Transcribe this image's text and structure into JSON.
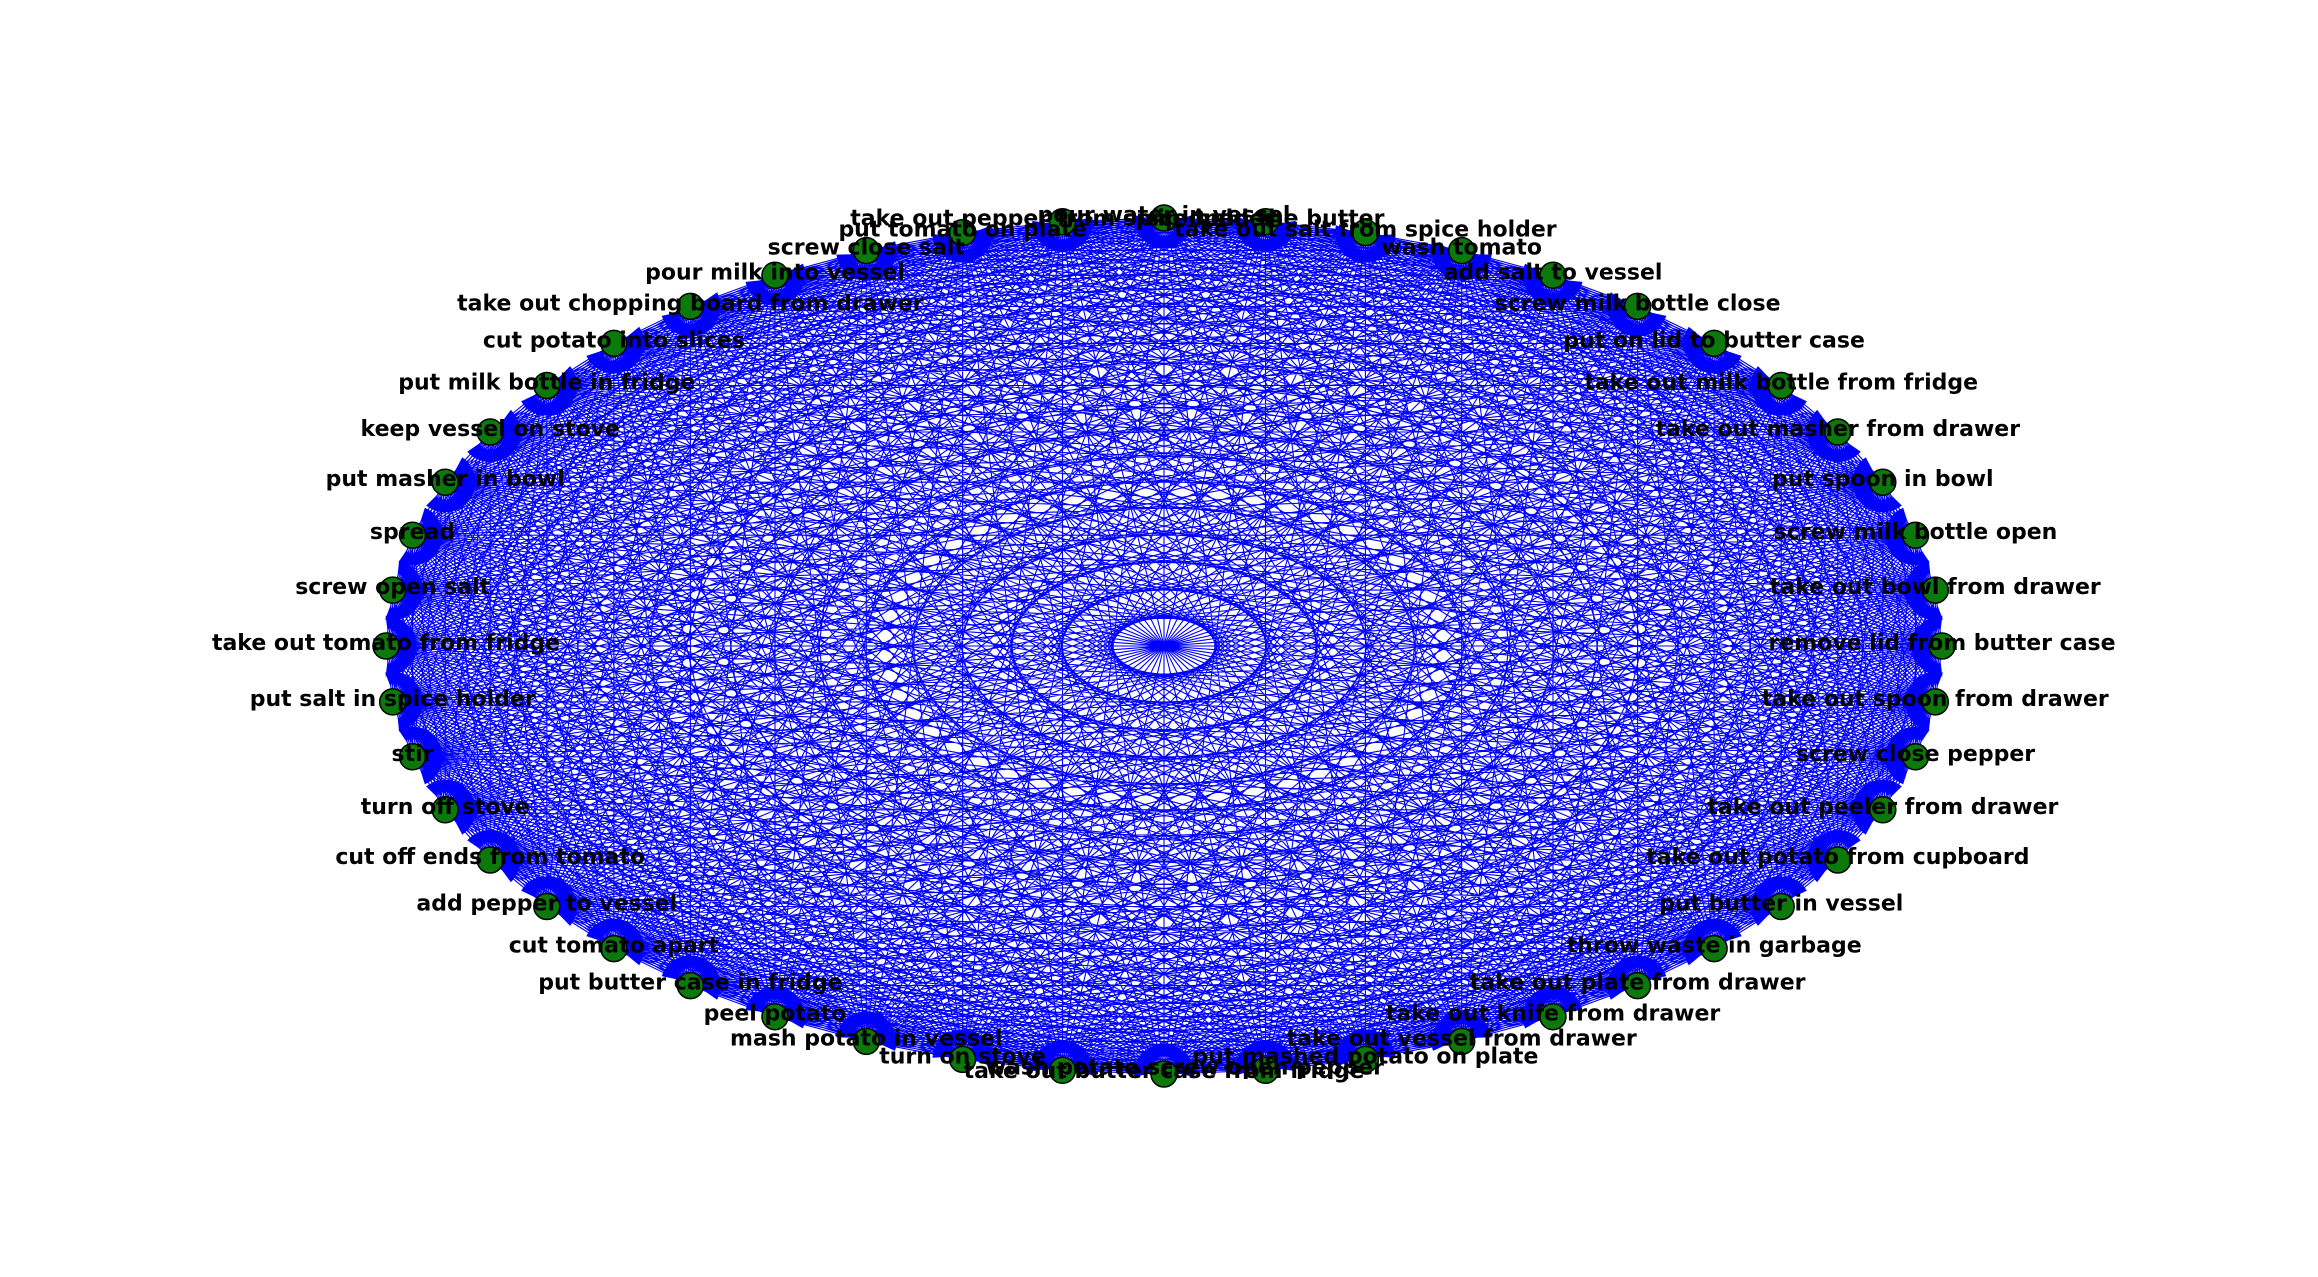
{
  "colors": {
    "background": "#ffffff",
    "edge": "#0000ff",
    "node_fill": "#0b7a0b",
    "node_stroke": "#000000",
    "label": "#000000"
  },
  "graph": {
    "type": "complete-directed-circular",
    "nodes": [
      "remove lid from butter case",
      "take out bowl from drawer",
      "screw milk bottle open",
      "put spoon in bowl",
      "take out masher from drawer",
      "take out milk bottle from fridge",
      "put on lid to butter case",
      "screw milk bottle close",
      "add salt to vessel",
      "wash tomato",
      "take out salt from spice holder",
      "rip open the butter",
      "pour water in vessel",
      "take out pepper from spice holder",
      "put tomato on plate",
      "screw close salt",
      "pour milk into vessel",
      "take out chopping board from drawer",
      "cut potato into slices",
      "put milk bottle in fridge",
      "keep vessel on stove",
      "put masher in bowl",
      "spread",
      "screw open salt",
      "take out tomato from fridge",
      "put salt in spice holder",
      "stir",
      "turn off stove",
      "cut off ends from tomato",
      "add pepper to vessel",
      "cut tomato apart",
      "put butter case in fridge",
      "peel potato",
      "mash potato in vessel",
      "turn on stove",
      "wash potato",
      "take out butter case from fridge",
      "screw open pepper",
      "put mashed potato on plate",
      "take out vessel from drawer",
      "take out knife from drawer",
      "take out plate from drawer",
      "throw waste in garbage",
      "put butter in vessel",
      "take out potato from cupboard",
      "take out peeler from drawer",
      "screw close pepper",
      "take out spoon from drawer"
    ]
  }
}
